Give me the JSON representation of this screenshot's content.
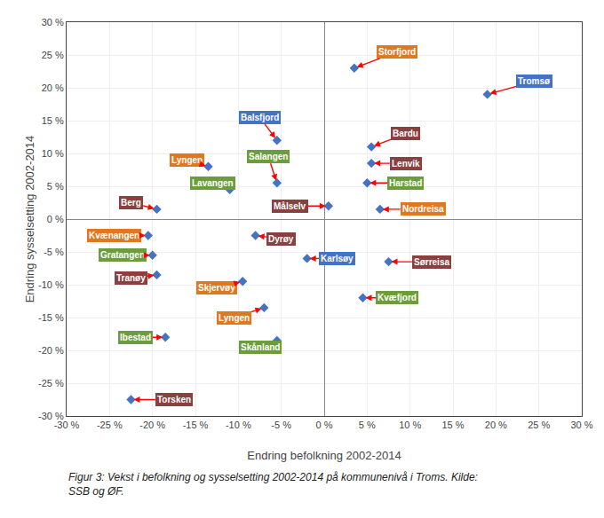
{
  "chart_data": {
    "type": "scatter",
    "xlabel": "Endring befolkning 2002-2014",
    "ylabel": "Endring sysselsetting 2002-2014",
    "caption": "Figur 3: Vekst i befolkning og sysselsetting 2002-2014 på kommunenivå i Troms. Kilde:\nSSB og ØF.",
    "x": [
      3.5,
      19.0,
      -5.5,
      -5.5,
      -13.5,
      -11.0,
      -19.5,
      5.5,
      5.5,
      5.0,
      0.5,
      6.5,
      -20.5,
      -20.0,
      -19.5,
      -8.0,
      -2.0,
      7.5,
      4.5,
      -9.5,
      -7.0,
      -5.5,
      -18.5,
      -22.5
    ],
    "values": [
      23.0,
      19.0,
      12.0,
      5.5,
      8.0,
      4.5,
      1.5,
      11.0,
      8.5,
      5.5,
      2.0,
      1.5,
      -2.5,
      -5.5,
      -8.5,
      -2.5,
      -6.0,
      -6.5,
      -12.0,
      -9.5,
      -13.5,
      -18.5,
      -18.0,
      -27.5
    ],
    "color": "#4472C4",
    "marker": "diamond",
    "arrow_color": "#FF0000",
    "annotations": [
      {
        "text": "Storfjord",
        "x": 8.5,
        "y": 25.5,
        "color": "#E07820",
        "text_color": "#FFFFFF"
      },
      {
        "text": "Tromsø",
        "x": 24.5,
        "y": 21.0,
        "color": "#4472C4",
        "text_color": "#FFFFFF"
      },
      {
        "text": "Balsfjord",
        "x": -7.5,
        "y": 15.5,
        "color": "#4472C4",
        "text_color": "#FFFFFF"
      },
      {
        "text": "Salangen",
        "x": -6.5,
        "y": 9.5,
        "color": "#6B9E3A",
        "text_color": "#FFFFFF"
      },
      {
        "text": "Lyngen",
        "x": -16.0,
        "y": 9.0,
        "color": "#E07820",
        "text_color": "#FFFFFF"
      },
      {
        "text": "Lavangen",
        "x": -13.0,
        "y": 5.5,
        "color": "#6B9E3A",
        "text_color": "#FFFFFF"
      },
      {
        "text": "Berg",
        "x": -22.5,
        "y": 2.5,
        "color": "#8B4040",
        "text_color": "#FFFFFF"
      },
      {
        "text": "Bardu",
        "x": 9.5,
        "y": 13.0,
        "color": "#8B4040",
        "text_color": "#FFFFFF"
      },
      {
        "text": "Lenvik",
        "x": 9.5,
        "y": 8.5,
        "color": "#8B4040",
        "text_color": "#FFFFFF"
      },
      {
        "text": "Harstad",
        "x": 9.5,
        "y": 5.5,
        "color": "#6B9E3A",
        "text_color": "#FFFFFF"
      },
      {
        "text": "Målselv",
        "x": -4.0,
        "y": 2.0,
        "color": "#8B4040",
        "text_color": "#FFFFFF"
      },
      {
        "text": "Nordreisa",
        "x": 11.5,
        "y": 1.5,
        "color": "#E07820",
        "text_color": "#FFFFFF"
      },
      {
        "text": "Kvænangen",
        "x": -24.5,
        "y": -2.5,
        "color": "#E07820",
        "text_color": "#FFFFFF"
      },
      {
        "text": "Gratangen",
        "x": -23.5,
        "y": -5.5,
        "color": "#6B9E3A",
        "text_color": "#FFFFFF"
      },
      {
        "text": "Tranøy",
        "x": -22.5,
        "y": -9.0,
        "color": "#8B4040",
        "text_color": "#FFFFFF"
      },
      {
        "text": "Dyrøy",
        "x": -5.0,
        "y": -3.0,
        "color": "#8B4040",
        "text_color": "#FFFFFF"
      },
      {
        "text": "Karlsøy",
        "x": 1.5,
        "y": -6.0,
        "color": "#4472C4",
        "text_color": "#FFFFFF"
      },
      {
        "text": "Sørreisa",
        "x": 12.5,
        "y": -6.5,
        "color": "#8B4040",
        "text_color": "#FFFFFF"
      },
      {
        "text": "Kvæfjord",
        "x": 8.5,
        "y": -12.0,
        "color": "#6B9E3A",
        "text_color": "#FFFFFF"
      },
      {
        "text": "Skjervøy",
        "x": -12.5,
        "y": -10.5,
        "color": "#E07820",
        "text_color": "#FFFFFF"
      },
      {
        "text": "Lyngen",
        "x": -10.5,
        "y": -15.0,
        "color": "#E07820",
        "text_color": "#FFFFFF"
      },
      {
        "text": "Skånland",
        "x": -7.5,
        "y": -19.5,
        "color": "#6B9E3A",
        "text_color": "#FFFFFF"
      },
      {
        "text": "Ibestad",
        "x": -22.0,
        "y": -18.0,
        "color": "#6B9E3A",
        "text_color": "#FFFFFF"
      },
      {
        "text": "Torsken",
        "x": -17.5,
        "y": -27.5,
        "color": "#8B4040",
        "text_color": "#FFFFFF"
      }
    ],
    "xlim": [
      -30,
      30
    ],
    "ylim": [
      -30,
      30
    ],
    "xticks": [
      {
        "value": -30,
        "label": "-30 %"
      },
      {
        "value": -25,
        "label": "-25 %"
      },
      {
        "value": -20,
        "label": "-20 %"
      },
      {
        "value": -15,
        "label": "-15 %"
      },
      {
        "value": -10,
        "label": "-10 %"
      },
      {
        "value": -5,
        "label": "-5 %"
      },
      {
        "value": 0,
        "label": "0 %"
      },
      {
        "value": 5,
        "label": "5 %"
      },
      {
        "value": 10,
        "label": "10 %"
      },
      {
        "value": 15,
        "label": "15 %"
      },
      {
        "value": 20,
        "label": "20 %"
      },
      {
        "value": 25,
        "label": "25 %"
      },
      {
        "value": 30,
        "label": "30 %"
      }
    ],
    "yticks": [
      {
        "value": -30,
        "label": "-30 %"
      },
      {
        "value": -25,
        "label": "-25 %"
      },
      {
        "value": -20,
        "label": "-20 %"
      },
      {
        "value": -15,
        "label": "-15 %"
      },
      {
        "value": -10,
        "label": "-10 %"
      },
      {
        "value": -5,
        "label": "-5 %"
      },
      {
        "value": 0,
        "label": "0 %"
      },
      {
        "value": 5,
        "label": "5 %"
      },
      {
        "value": 10,
        "label": "10 %"
      },
      {
        "value": 15,
        "label": "15 %"
      },
      {
        "value": 20,
        "label": "20 %"
      },
      {
        "value": 25,
        "label": "25 %"
      },
      {
        "value": 30,
        "label": "30 %"
      }
    ],
    "grid": true
  }
}
